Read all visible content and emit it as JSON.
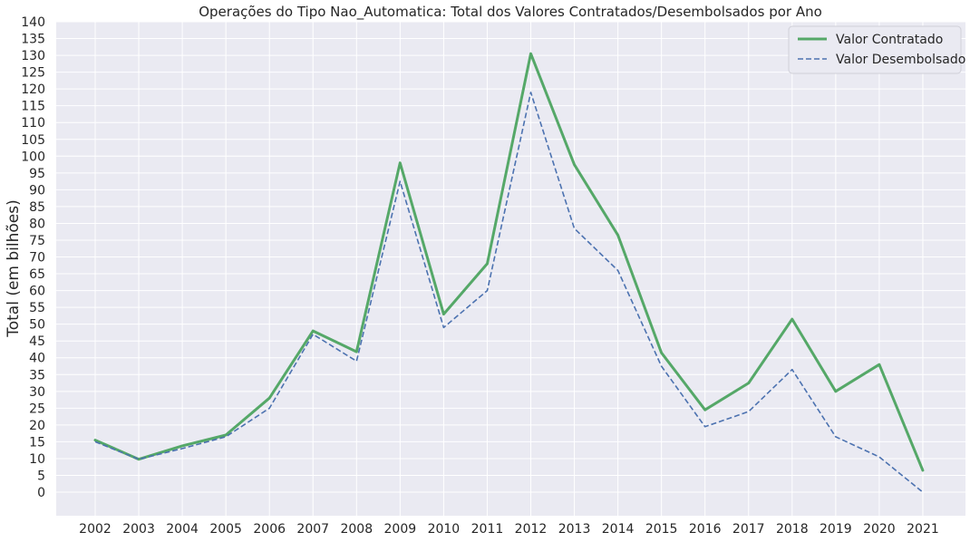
{
  "chart_data": {
    "type": "line",
    "title": "Operações do Tipo Nao_Automatica: Total dos Valores Contratados/Desembolsados por Ano",
    "xlabel": "",
    "ylabel": "Total (em bilhões)",
    "categories": [
      "2002",
      "2003",
      "2004",
      "2005",
      "2006",
      "2007",
      "2008",
      "2009",
      "2010",
      "2011",
      "2012",
      "2013",
      "2014",
      "2015",
      "2016",
      "2017",
      "2018",
      "2019",
      "2020",
      "2021"
    ],
    "y_ticks": [
      0,
      5,
      10,
      15,
      20,
      25,
      30,
      35,
      40,
      45,
      50,
      55,
      60,
      65,
      70,
      75,
      80,
      85,
      90,
      95,
      100,
      105,
      110,
      115,
      120,
      125,
      130,
      135,
      140
    ],
    "ylim": [
      -7,
      140
    ],
    "grid": true,
    "legend_position": "top-right",
    "series": [
      {
        "name": "Valor Contratado",
        "color": "#55a868",
        "line_style": "solid",
        "values": [
          15.5,
          9.8,
          13.8,
          17,
          28,
          48,
          41.8,
          98,
          53,
          68,
          130.5,
          97.5,
          76.5,
          41.5,
          24.5,
          32.5,
          51.5,
          30,
          38,
          6.5
        ]
      },
      {
        "name": "Valor Desembolsado",
        "color": "#4c72b0",
        "line_style": "dashed",
        "values": [
          15,
          9.8,
          13,
          16.5,
          25,
          47,
          39,
          92.5,
          49,
          60,
          119,
          78.5,
          66,
          37.5,
          19.5,
          24,
          36.5,
          16.5,
          10.5,
          0
        ]
      }
    ]
  }
}
